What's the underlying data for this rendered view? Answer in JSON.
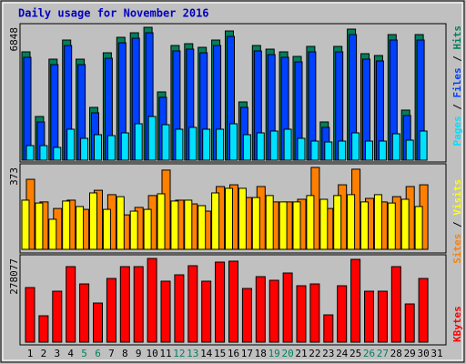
{
  "chart_data": [
    {
      "type": "bar",
      "title": "Daily usage for November 2016",
      "categories": [
        "1",
        "2",
        "3",
        "4",
        "5",
        "6",
        "7",
        "8",
        "9",
        "10",
        "11",
        "12",
        "13",
        "14",
        "15",
        "16",
        "17",
        "18",
        "19",
        "20",
        "21",
        "22",
        "23",
        "24",
        "25",
        "26",
        "27",
        "28",
        "29",
        "30",
        "31"
      ],
      "category_colors": [
        "#000000",
        "#000000",
        "#000000",
        "#000000",
        "#00805c",
        "#00805c",
        "#000000",
        "#000000",
        "#000000",
        "#000000",
        "#000000",
        "#00805c",
        "#00805c",
        "#000000",
        "#000000",
        "#000000",
        "#000000",
        "#000000",
        "#00805c",
        "#00805c",
        "#000000",
        "#000000",
        "#000000",
        "#000000",
        "#000000",
        "#00805c",
        "#00805c",
        "#000000",
        "#000000",
        "#000000",
        "#000000"
      ],
      "legend_separator": "/",
      "ylim": [
        0,
        6848
      ],
      "yticks": [
        6848
      ],
      "series": [
        {
          "name": "Pages",
          "color": "#00e0ff",
          "values": [
            750,
            750,
            657,
            1595,
            1126,
            1313,
            1266,
            1407,
            1876,
            2251,
            1829,
            1595,
            1689,
            1595,
            1595,
            1876,
            1313,
            1407,
            1501,
            1595,
            1126,
            985,
            938,
            985,
            1407,
            985,
            985,
            1360,
            1032,
            1501,
            null
          ]
        },
        {
          "name": "Files",
          "color": "#0040ff",
          "values": [
            5300,
            1970,
            4925,
            5910,
            4925,
            2440,
            5254,
            6050,
            6285,
            6567,
            3237,
            5629,
            5723,
            5535,
            5910,
            6379,
            2721,
            5629,
            5441,
            5301,
            5066,
            5582,
            1689,
            5582,
            6473,
            5207,
            5113,
            6192,
            2299,
            6192,
            null
          ]
        },
        {
          "name": "Hits",
          "color": "#00805c",
          "values": [
            5582,
            2251,
            5206,
            6191,
            5206,
            2720,
            5535,
            6332,
            6566,
            6848,
            3518,
            5910,
            6004,
            5816,
            6191,
            6660,
            3002,
            5910,
            5722,
            5582,
            5347,
            5863,
            1970,
            5863,
            6754,
            5488,
            5394,
            6473,
            2580,
            6473,
            null
          ]
        }
      ]
    },
    {
      "type": "bar",
      "ylim": [
        0,
        373
      ],
      "yticks": [
        373
      ],
      "series": [
        {
          "name": "Sites",
          "color": "#ff8000",
          "values": [
            319,
            216,
            186,
            224,
            182,
            269,
            249,
            157,
            191,
            245,
            361,
            224,
            207,
            174,
            286,
            294,
            236,
            286,
            216,
            216,
            228,
            373,
            186,
            294,
            365,
            232,
            216,
            240,
            286,
            294,
            null
          ]
        },
        {
          "name": "Visits",
          "color": "#ffff00",
          "values": [
            224,
            211,
            137,
            220,
            195,
            257,
            182,
            240,
            174,
            182,
            253,
            220,
            224,
            199,
            257,
            278,
            278,
            236,
            245,
            216,
            216,
            245,
            228,
            245,
            249,
            216,
            249,
            211,
            228,
            195,
            null
          ]
        }
      ]
    },
    {
      "type": "bar",
      "ylim": [
        0,
        278077
      ],
      "yticks": [
        278077
      ],
      "series": [
        {
          "name": "KBytes",
          "color": "#ff0000",
          "values": [
            181355,
            87655,
            169263,
            250873,
            193445,
            129969,
            211580,
            250873,
            250873,
            278077,
            202513,
            223670,
            253896,
            202513,
            265987,
            269010,
            178332,
            217625,
            205535,
            229716,
            187400,
            193445,
            90677,
            187400,
            275054,
            169263,
            169263,
            250873,
            126948,
            211580,
            null
          ]
        }
      ]
    }
  ]
}
